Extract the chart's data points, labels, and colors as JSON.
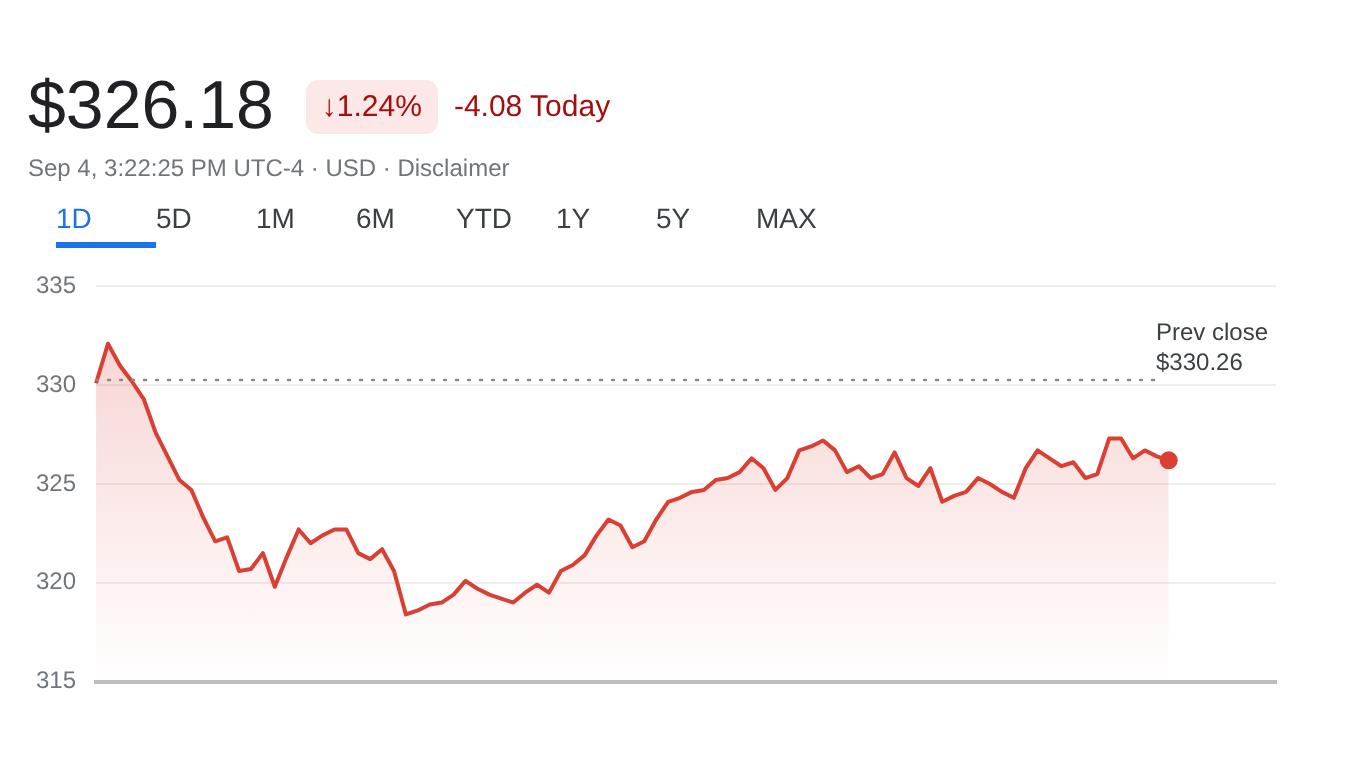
{
  "chart_data": {
    "type": "area",
    "annotations": [
      "$326.18",
      "↓1.24%",
      "-4.08 Today",
      "Sep 4, 3:22:25 PM UTC-4 · USD · Disclaimer",
      "1D",
      "5D",
      "1M",
      "6M",
      "YTD",
      "1Y",
      "5Y",
      "MAX"
    ],
    "categories": [
      null,
      null,
      null,
      null,
      null,
      null,
      null,
      null,
      null,
      null,
      null,
      null,
      null,
      null,
      null,
      null,
      null,
      null,
      null,
      null,
      null,
      null,
      null,
      null,
      null,
      null,
      null,
      null,
      null,
      null,
      null,
      null,
      null,
      null,
      null,
      null,
      null,
      null,
      null,
      null,
      null,
      null,
      null,
      null,
      null,
      null,
      null,
      null,
      null,
      null,
      null,
      null,
      null,
      null,
      null,
      null,
      null,
      null,
      null,
      null,
      null,
      null,
      null,
      null,
      null,
      null,
      null,
      null,
      null,
      null,
      null,
      null,
      null,
      null,
      null,
      null,
      null,
      null,
      null,
      null,
      null,
      null,
      null,
      null,
      null,
      null,
      null,
      null,
      null,
      null,
      null,
      null,
      null,
      null,
      null,
      null,
      null,
      null,
      null,
      null
    ],
    "series": [
      {
        "color": "#d93f33",
        "values": [
          330.1,
          332.1,
          331.0,
          330.2,
          329.3,
          327.6,
          326.4,
          325.2,
          324.7,
          323.3,
          322.1,
          322.3,
          320.6,
          320.7,
          321.5,
          319.8,
          321.3,
          322.7,
          322.0,
          322.4,
          322.7,
          322.7,
          321.5,
          321.2,
          321.7,
          320.6,
          318.4,
          318.6,
          318.9,
          319.0,
          319.4,
          320.1,
          319.7,
          319.4,
          319.2,
          319.0,
          319.5,
          319.9,
          319.5,
          320.6,
          320.9,
          321.4,
          322.4,
          323.2,
          322.9,
          321.8,
          322.1,
          323.2,
          324.1,
          324.3,
          324.6,
          324.7,
          325.2,
          325.3,
          325.6,
          326.3,
          325.8,
          324.7,
          325.3,
          326.7,
          326.9,
          327.2,
          326.7,
          325.6,
          325.9,
          325.3,
          325.5,
          326.6,
          325.3,
          324.9,
          325.8,
          324.1,
          324.4,
          324.6,
          325.3,
          325.0,
          324.6,
          324.3,
          325.8,
          326.7,
          326.3,
          325.9,
          326.1,
          325.3,
          325.5,
          327.3,
          327.3,
          326.3,
          326.7,
          326.4,
          326.2,
          null,
          null,
          null,
          null,
          null,
          null,
          null,
          null,
          null
        ]
      }
    ],
    "ylim": [
      315,
      335
    ],
    "yticks": [
      315,
      320,
      325,
      330,
      335
    ],
    "grid": "y",
    "legend": false,
    "marker": "none",
    "ref_lines": [
      {
        "axis": "y",
        "value": 330.26,
        "label": "Prev close $330.26",
        "line_style": "dotted",
        "color": "#888888"
      }
    ]
  }
}
